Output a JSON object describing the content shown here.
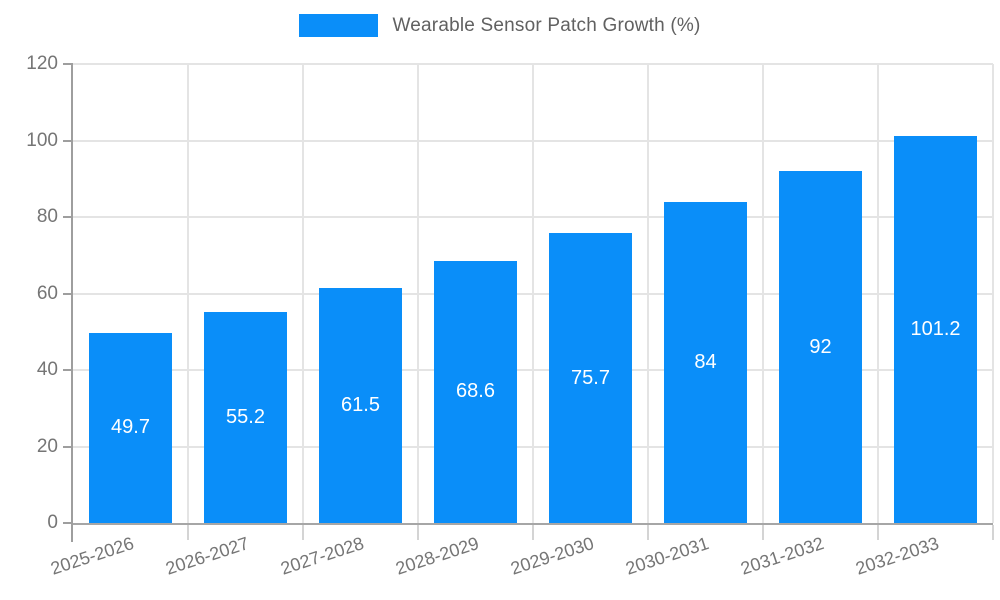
{
  "legend": {
    "label": "Wearable Sensor Patch Growth (%)",
    "swatch_color": "#0a8ef9"
  },
  "colors": {
    "bar": "#0a8ef9",
    "grid": "#e4e4e4",
    "axis_line": "#9e9e9e",
    "tick_text": "#757575",
    "legend_text": "#616161",
    "value_label": "#ffffff"
  },
  "chart_data": {
    "type": "bar",
    "title": "Wearable Sensor Patch Growth (%)",
    "categories": [
      "2025-2026",
      "2026-2027",
      "2027-2028",
      "2028-2029",
      "2029-2030",
      "2030-2031",
      "2031-2032",
      "2032-2033"
    ],
    "values": [
      49.7,
      55.2,
      61.5,
      68.6,
      75.7,
      84,
      92,
      101.2
    ],
    "value_labels": [
      "49.7",
      "55.2",
      "61.5",
      "68.6",
      "75.7",
      "84",
      "92",
      "101.2"
    ],
    "xlabel": "",
    "ylabel": "",
    "ylim": [
      0,
      120
    ],
    "ytick_step": 20,
    "ytick_labels": [
      "0",
      "20",
      "40",
      "60",
      "80",
      "100",
      "120"
    ],
    "grid": true,
    "vertical_grid_at_category_boundaries": true,
    "legend_position": "top-center",
    "value_label_position": "inside-center",
    "x_label_rotation_deg": -18
  }
}
